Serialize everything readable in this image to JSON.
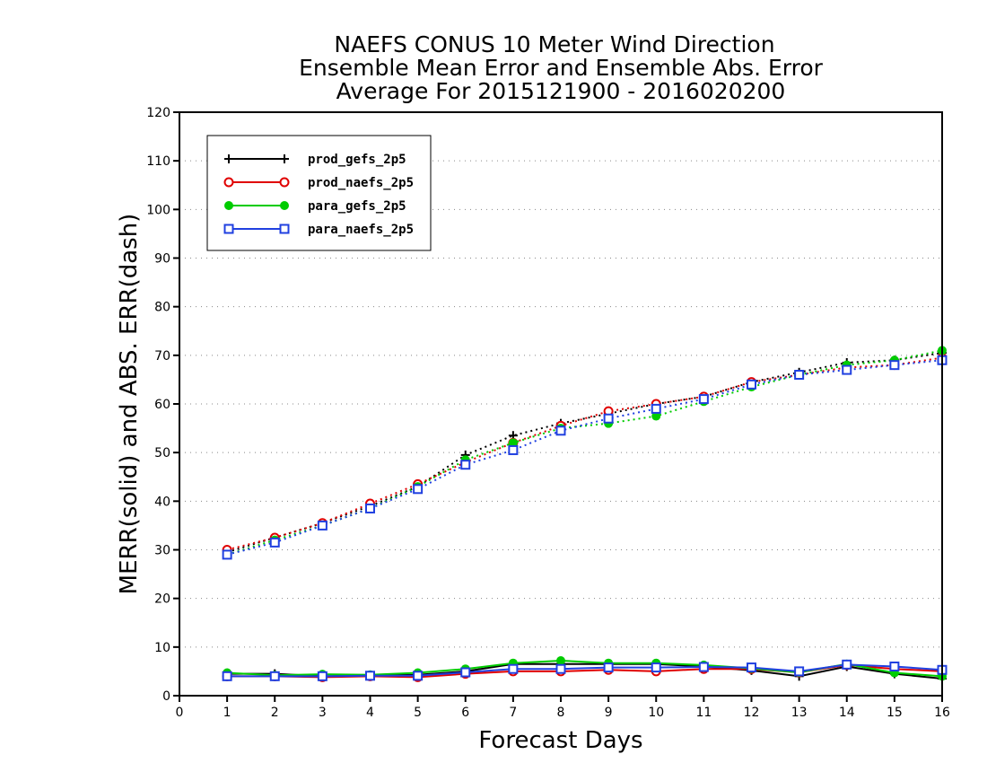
{
  "chart_data": {
    "type": "line",
    "title_lines": [
      "NAEFS CONUS 10 Meter Wind Direction",
      "Ensemble Mean Error and Ensemble Abs. Error",
      "Average For 2015121900 - 2016020200"
    ],
    "xlabel": "Forecast Days",
    "ylabel": "MERR(solid) and ABS. ERR(dash)",
    "xlim": [
      0,
      16
    ],
    "ylim": [
      0,
      120
    ],
    "x_ticks": [
      0,
      1,
      2,
      3,
      4,
      5,
      6,
      7,
      8,
      9,
      10,
      11,
      12,
      13,
      14,
      15,
      16
    ],
    "y_ticks": [
      0,
      10,
      20,
      30,
      40,
      50,
      60,
      70,
      80,
      90,
      100,
      110,
      120
    ],
    "grid": "horizontal dotted",
    "legend_position": "top-left",
    "x": [
      1,
      2,
      3,
      4,
      5,
      6,
      7,
      8,
      9,
      10,
      11,
      12,
      13,
      14,
      15,
      16
    ],
    "series": [
      {
        "name": "prod_gefs_2p5",
        "color": "#000000",
        "marker": "plus",
        "merr": [
          4.5,
          4.5,
          4.0,
          4.2,
          4.3,
          5.0,
          6.5,
          6.5,
          6.5,
          6.5,
          6.0,
          5.2,
          4.0,
          6.0,
          4.5,
          3.5
        ],
        "abs_err": [
          29.5,
          32.5,
          35.5,
          39.0,
          43.0,
          49.5,
          53.5,
          56.0,
          58.0,
          60.0,
          61.5,
          64.5,
          66.5,
          68.5,
          69.0,
          70.5
        ]
      },
      {
        "name": "prod_naefs_2p5",
        "color": "#e00000",
        "marker": "circle",
        "merr": [
          4.0,
          4.0,
          3.8,
          4.0,
          3.8,
          4.5,
          5.0,
          5.0,
          5.3,
          5.0,
          5.5,
          5.5,
          4.8,
          6.3,
          5.5,
          5.0
        ],
        "abs_err": [
          30.0,
          32.5,
          35.5,
          39.5,
          43.5,
          48.0,
          52.0,
          55.5,
          58.5,
          60.0,
          61.5,
          64.5,
          66.0,
          67.5,
          68.0,
          69.5
        ]
      },
      {
        "name": "para_gefs_2p5",
        "color": "#00cc00",
        "marker": "filled-circle",
        "merr": [
          4.7,
          4.2,
          4.4,
          4.3,
          4.7,
          5.5,
          6.7,
          7.2,
          6.7,
          6.7,
          6.3,
          5.6,
          4.8,
          6.5,
          4.7,
          4.0
        ],
        "abs_err": [
          29.0,
          32.0,
          35.0,
          38.5,
          43.0,
          48.5,
          52.0,
          55.0,
          56.0,
          57.5,
          60.5,
          63.5,
          66.0,
          68.0,
          69.0,
          71.0
        ]
      },
      {
        "name": "para_naefs_2p5",
        "color": "#2040e0",
        "marker": "square",
        "merr": [
          4.0,
          4.0,
          4.0,
          4.1,
          4.1,
          4.8,
          5.5,
          5.5,
          5.8,
          5.8,
          5.9,
          5.8,
          5.0,
          6.4,
          6.0,
          5.3
        ],
        "abs_err": [
          29.0,
          31.5,
          35.0,
          38.5,
          42.5,
          47.5,
          50.5,
          54.5,
          57.0,
          59.0,
          61.0,
          64.0,
          66.0,
          67.0,
          68.0,
          69.0
        ]
      }
    ]
  }
}
